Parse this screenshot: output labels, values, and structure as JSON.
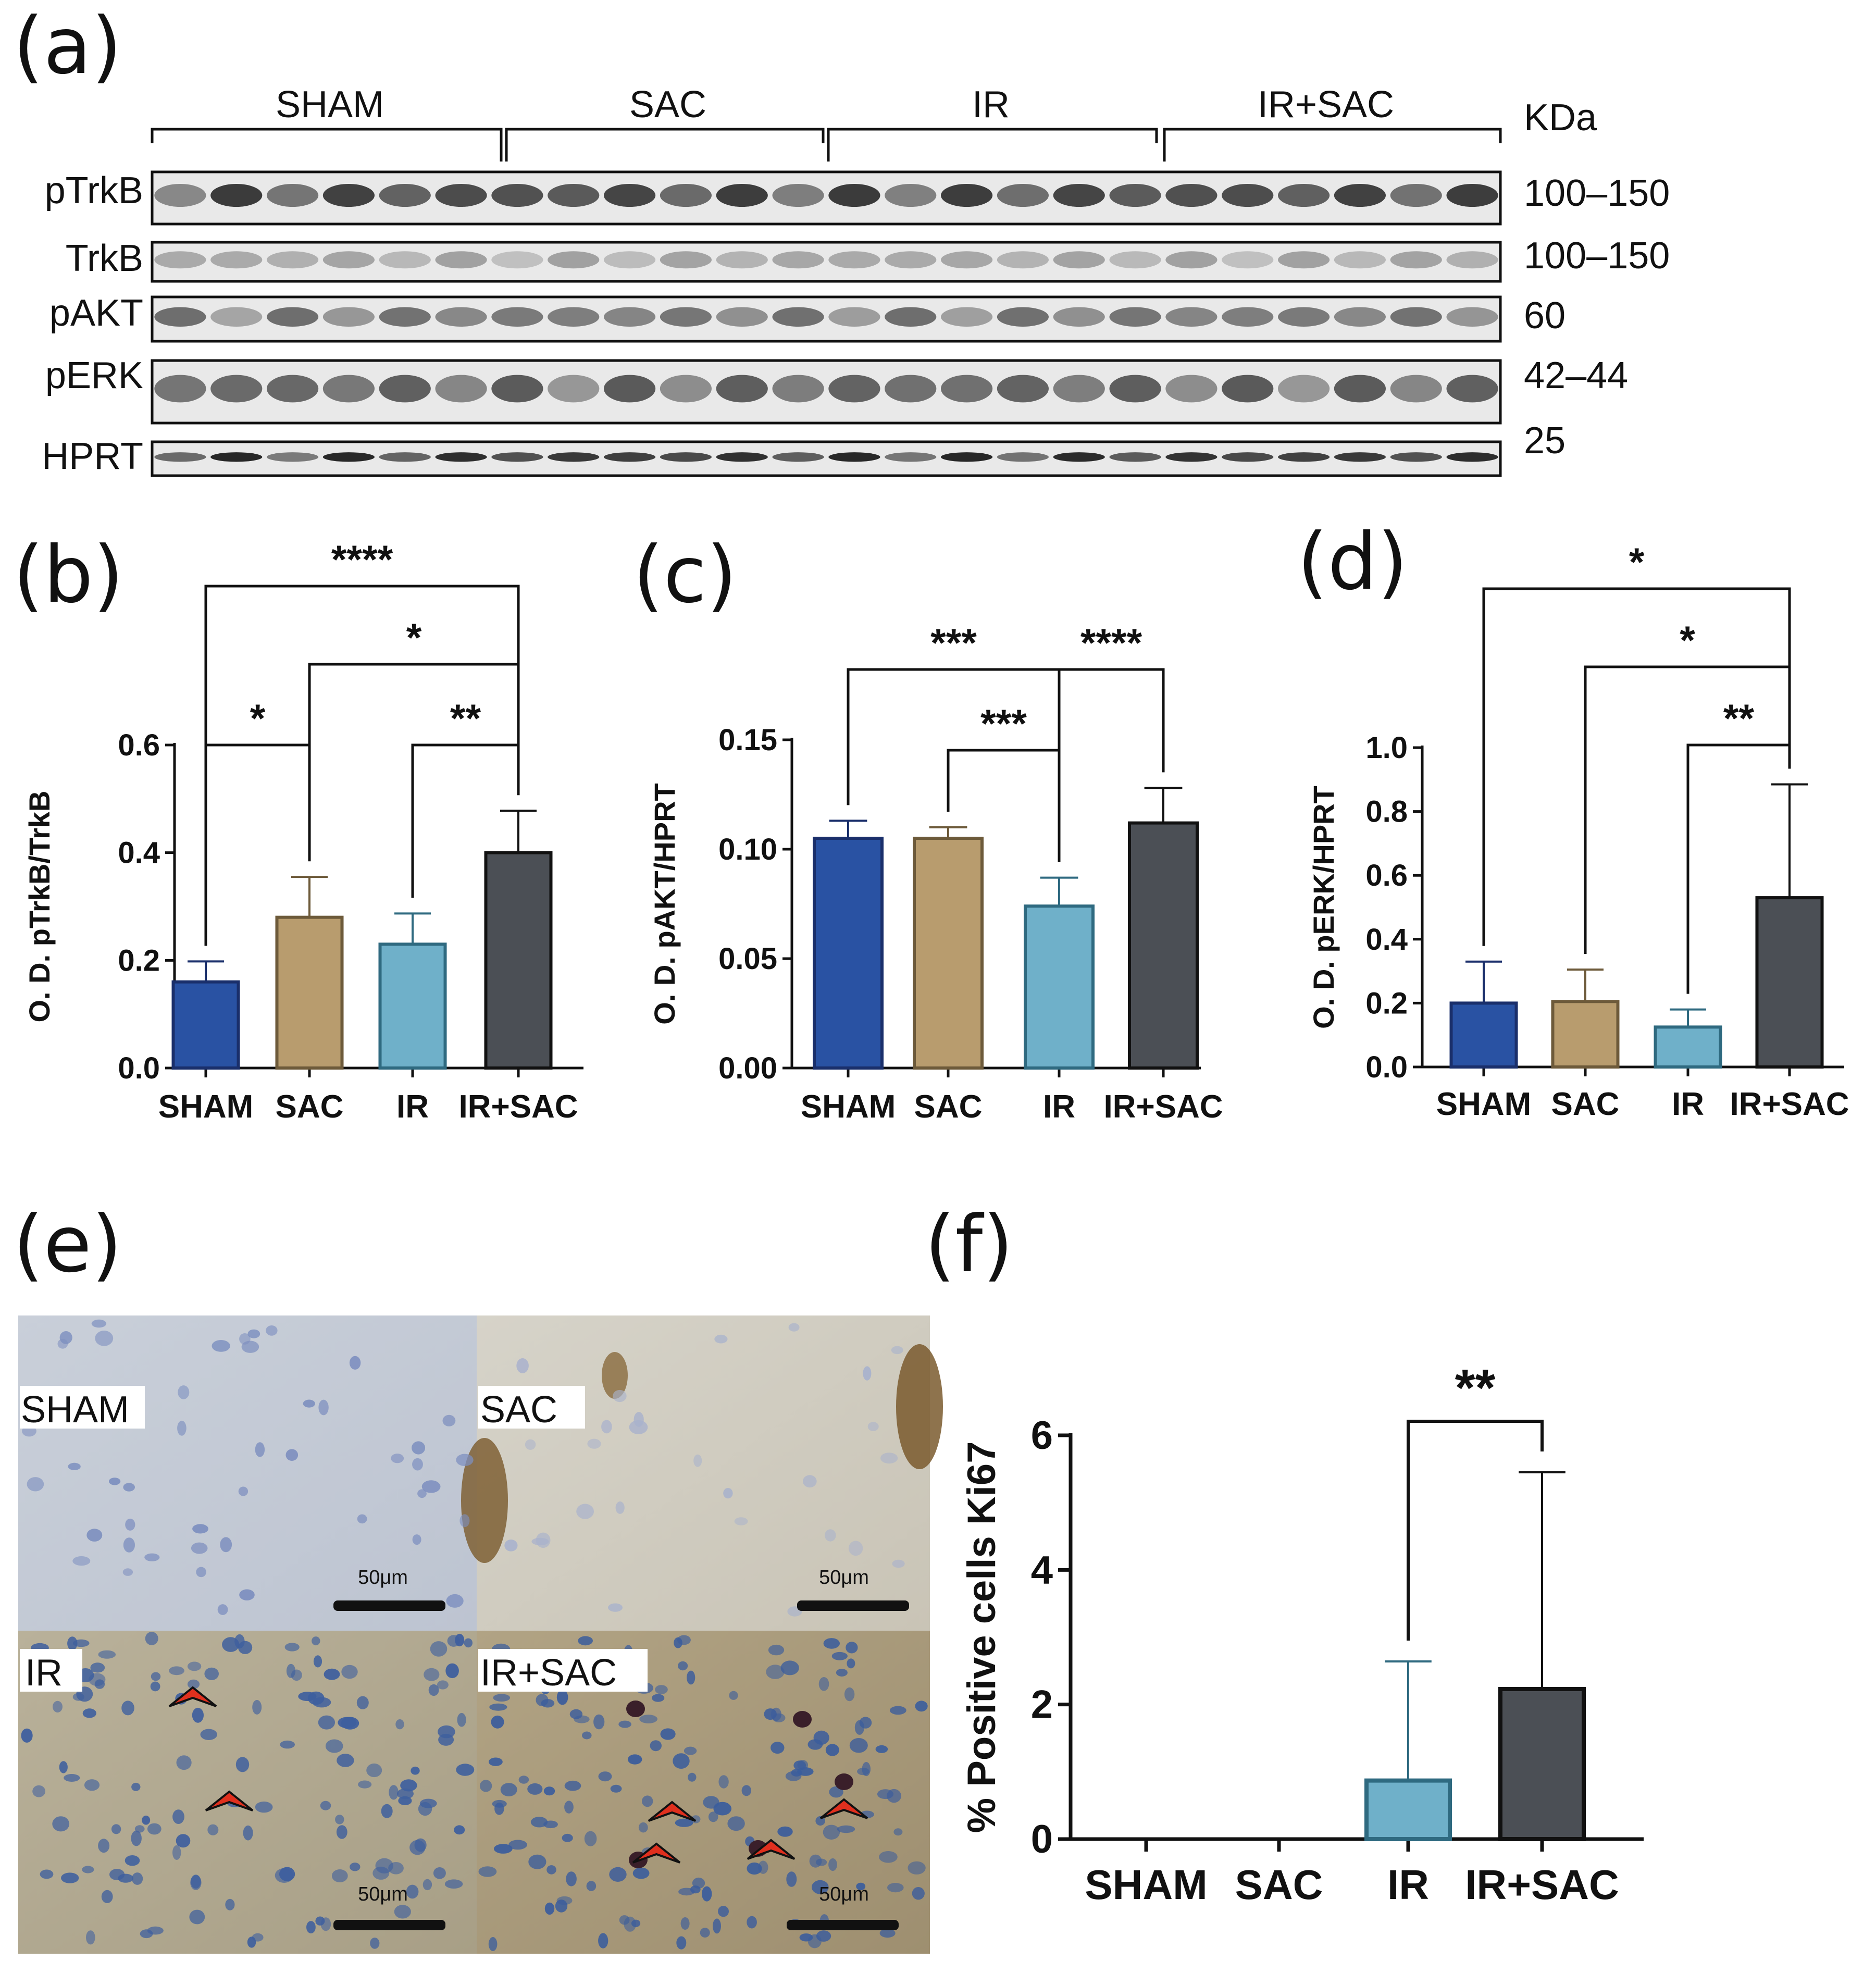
{
  "panel_labels": {
    "a": "(a)",
    "b": "(b)",
    "c": "(c)",
    "d": "(d)",
    "e": "(e)",
    "f": "(f)"
  },
  "blot": {
    "groups": [
      "SHAM",
      "SAC",
      "IR",
      "IR+SAC"
    ],
    "unit_header": "KDa",
    "rows": [
      {
        "name": "pTrkB",
        "kda": "100–150"
      },
      {
        "name": "TrkB",
        "kda": "100–150"
      },
      {
        "name": "pAKT",
        "kda": "60"
      },
      {
        "name": "pERK",
        "kda": "42–44"
      },
      {
        "name": "HPRT",
        "kda": "25"
      }
    ]
  },
  "colors": {
    "SHAM": "#2952a3",
    "SAC": "#b89c6e",
    "IR": "#6fb0c9",
    "IR+SAC": "#4b4f55"
  },
  "chart_data": [
    {
      "id": "b",
      "type": "bar",
      "categories": [
        "SHAM",
        "SAC",
        "IR",
        "IR+SAC"
      ],
      "values": [
        0.16,
        0.28,
        0.23,
        0.4
      ],
      "errors": [
        0.038,
        0.075,
        0.057,
        0.078
      ],
      "ylabel": "O. D. pTrkB/TrkB",
      "ylim": [
        0,
        0.6
      ],
      "yticks": [
        "0.0",
        "0.2",
        "0.4",
        "0.6"
      ],
      "significance": [
        {
          "pair": [
            "SHAM",
            "IR+SAC"
          ],
          "label": "****"
        },
        {
          "pair": [
            "SAC",
            "IR+SAC"
          ],
          "label": "*"
        },
        {
          "pair": [
            "SHAM",
            "SAC"
          ],
          "label": "*"
        },
        {
          "pair": [
            "IR",
            "IR+SAC"
          ],
          "label": "**"
        }
      ]
    },
    {
      "id": "c",
      "type": "bar",
      "categories": [
        "SHAM",
        "SAC",
        "IR",
        "IR+SAC"
      ],
      "values": [
        0.105,
        0.105,
        0.074,
        0.112
      ],
      "errors": [
        0.008,
        0.005,
        0.013,
        0.016
      ],
      "ylabel": "O. D. pAKT/HPRT",
      "ylim": [
        0,
        0.15
      ],
      "yticks": [
        "0.00",
        "0.05",
        "0.10",
        "0.15"
      ],
      "significance": [
        {
          "pair": [
            "SHAM",
            "IR"
          ],
          "label": "***"
        },
        {
          "pair": [
            "IR",
            "IR+SAC"
          ],
          "label": "****"
        },
        {
          "pair": [
            "SAC",
            "IR"
          ],
          "label": "***"
        }
      ]
    },
    {
      "id": "d",
      "type": "bar",
      "categories": [
        "SHAM",
        "SAC",
        "IR",
        "IR+SAC"
      ],
      "values": [
        0.2,
        0.205,
        0.125,
        0.53
      ],
      "errors": [
        0.13,
        0.1,
        0.055,
        0.355
      ],
      "ylabel": "O. D. pERK/HPRT",
      "ylim": [
        0,
        1.0
      ],
      "yticks": [
        "0.0",
        "0.2",
        "0.4",
        "0.6",
        "0.8",
        "1.0"
      ],
      "significance": [
        {
          "pair": [
            "SHAM",
            "IR+SAC"
          ],
          "label": "*"
        },
        {
          "pair": [
            "SAC",
            "IR+SAC"
          ],
          "label": "*"
        },
        {
          "pair": [
            "IR",
            "IR+SAC"
          ],
          "label": "**"
        }
      ]
    },
    {
      "id": "f",
      "type": "bar",
      "categories": [
        "SHAM",
        "SAC",
        "IR",
        "IR+SAC"
      ],
      "values": [
        0,
        0,
        0.87,
        2.23
      ],
      "errors": [
        0,
        0,
        1.77,
        3.22
      ],
      "ylabel": "% Positive cells Ki67",
      "ylim": [
        0,
        6
      ],
      "yticks": [
        "0",
        "2",
        "4",
        "6"
      ],
      "significance": [
        {
          "pair": [
            "IR",
            "IR+SAC"
          ],
          "label": "**"
        }
      ]
    }
  ],
  "micrographs": [
    {
      "label": "SHAM",
      "scale": "50μm"
    },
    {
      "label": "SAC",
      "scale": "50μm"
    },
    {
      "label": "IR",
      "scale": "50μm"
    },
    {
      "label": "IR+SAC",
      "scale": "50μm"
    }
  ]
}
